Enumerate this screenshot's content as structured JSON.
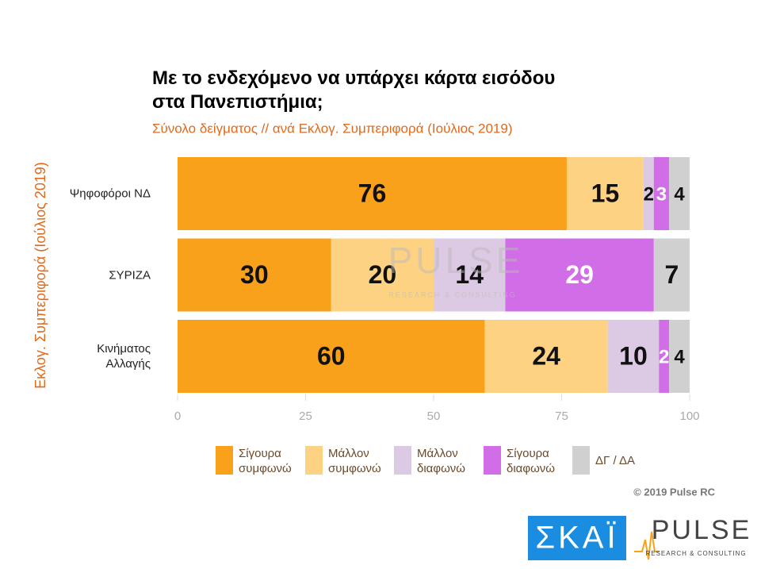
{
  "chart_data": {
    "type": "stacked-barh",
    "title": "Με το ενδεχόμενο να υπάρχει κάρτα εισόδου στα Πανεπιστήμια;",
    "subtitle": "Σύνολο δείγματος // ανά Εκλογ. Συμπεριφορά (Ιούλιος 2019)",
    "y_label": "Εκλογ. Συμπεριφορά (Ιούλιος 2019)",
    "categories": [
      "Ψηφοφόροι ΝΔ",
      "ΣΥΡΙΖΑ",
      "Κινήματος Αλλαγής"
    ],
    "series": [
      {
        "name": "Σίγουρα συμφωνώ",
        "color": "#f9a11b",
        "label_color": "#111111",
        "values": [
          76,
          30,
          60
        ]
      },
      {
        "name": "Μάλλον συμφωνώ",
        "color": "#fdd283",
        "label_color": "#111111",
        "values": [
          15,
          20,
          24
        ]
      },
      {
        "name": "Μάλλον διαφωνώ",
        "color": "#dcc9e3",
        "label_color": "#111111",
        "values": [
          2,
          14,
          10
        ]
      },
      {
        "name": "Σίγουρα διαφωνώ",
        "color": "#d16de6",
        "label_color": "#ffffff",
        "values": [
          3,
          29,
          2
        ]
      },
      {
        "name": "ΔΓ / ΔΑ",
        "color": "#d0d0d0",
        "label_color": "#111111",
        "values": [
          4,
          7,
          4
        ]
      }
    ],
    "xlim": [
      0,
      100
    ],
    "xticks": [
      0,
      25,
      50,
      75,
      100
    ],
    "copyright": "© 2019 Pulse RC",
    "watermark": {
      "name": "PULSE",
      "sub": "RESEARCH & CONSULTING"
    },
    "logos": {
      "skai": "ΣΚΑΪ",
      "pulse": "PULSE",
      "pulse_sub": "RESEARCH & CONSULTING"
    }
  }
}
